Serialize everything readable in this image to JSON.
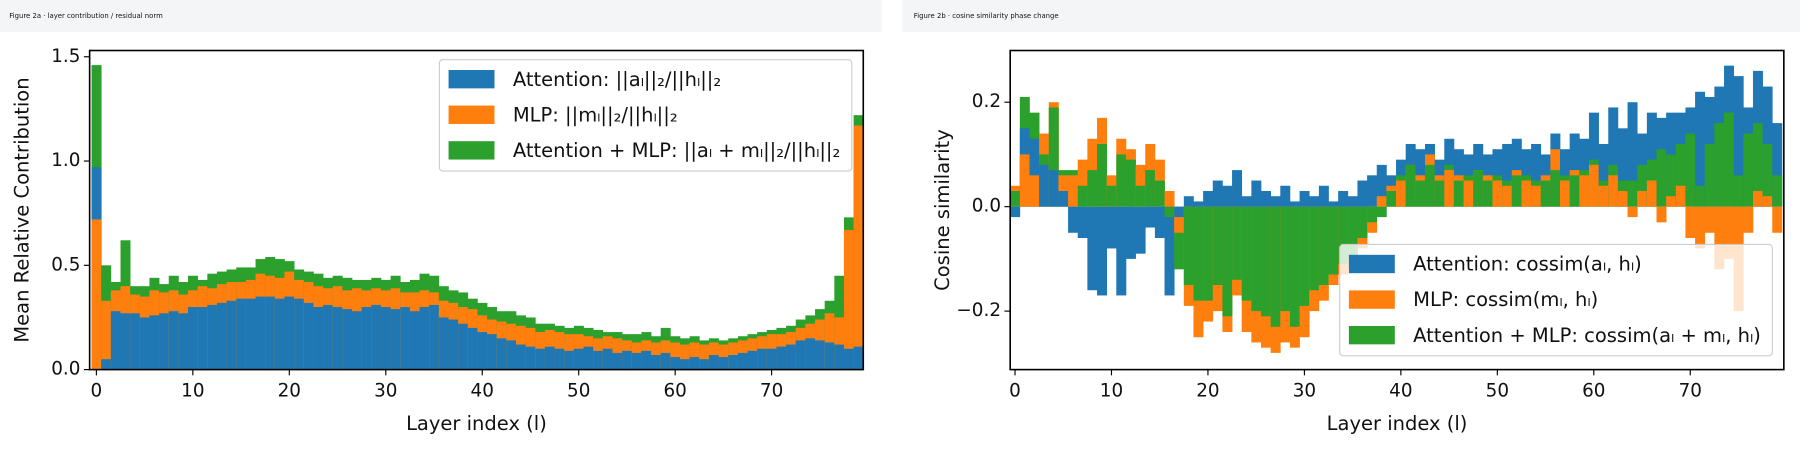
{
  "chart_data": [
    {
      "type": "bar",
      "title": "Figure 2a · layer contribution / residual norm",
      "xlabel": "Layer index (l)",
      "ylabel": "Mean Relative Contribution",
      "x": [
        0,
        1,
        2,
        3,
        4,
        5,
        6,
        7,
        8,
        9,
        10,
        11,
        12,
        13,
        14,
        15,
        16,
        17,
        18,
        19,
        20,
        21,
        22,
        23,
        24,
        25,
        26,
        27,
        28,
        29,
        30,
        31,
        32,
        33,
        34,
        35,
        36,
        37,
        38,
        39,
        40,
        41,
        42,
        43,
        44,
        45,
        46,
        47,
        48,
        49,
        50,
        51,
        52,
        53,
        54,
        55,
        56,
        57,
        58,
        59,
        60,
        61,
        62,
        63,
        64,
        65,
        66,
        67,
        68,
        69,
        70,
        71,
        72,
        73,
        74,
        75,
        76,
        77,
        78,
        79
      ],
      "series": [
        {
          "name": "Attention: ||aₗ||₂/||hₗ||₂",
          "color": "#1f77b4",
          "values": [
            0.97,
            0.05,
            0.28,
            0.27,
            0.27,
            0.25,
            0.26,
            0.27,
            0.28,
            0.27,
            0.3,
            0.3,
            0.31,
            0.32,
            0.33,
            0.34,
            0.34,
            0.35,
            0.35,
            0.34,
            0.35,
            0.34,
            0.32,
            0.3,
            0.31,
            0.3,
            0.29,
            0.28,
            0.3,
            0.31,
            0.3,
            0.29,
            0.3,
            0.28,
            0.3,
            0.31,
            0.25,
            0.24,
            0.22,
            0.2,
            0.18,
            0.17,
            0.15,
            0.14,
            0.12,
            0.11,
            0.1,
            0.11,
            0.1,
            0.09,
            0.1,
            0.11,
            0.09,
            0.1,
            0.08,
            0.09,
            0.08,
            0.09,
            0.07,
            0.08,
            0.06,
            0.05,
            0.06,
            0.05,
            0.07,
            0.06,
            0.07,
            0.08,
            0.09,
            0.1,
            0.1,
            0.11,
            0.12,
            0.14,
            0.15,
            0.14,
            0.13,
            0.12,
            0.1,
            0.11
          ]
        },
        {
          "name": "MLP: ||mₗ||₂/||hₗ||₂",
          "color": "#ff7f0e",
          "values": [
            0.72,
            0.33,
            0.38,
            0.4,
            0.36,
            0.35,
            0.38,
            0.37,
            0.38,
            0.36,
            0.38,
            0.4,
            0.39,
            0.41,
            0.42,
            0.42,
            0.43,
            0.46,
            0.45,
            0.44,
            0.47,
            0.43,
            0.42,
            0.4,
            0.39,
            0.4,
            0.38,
            0.39,
            0.38,
            0.39,
            0.38,
            0.39,
            0.37,
            0.37,
            0.38,
            0.37,
            0.33,
            0.32,
            0.3,
            0.29,
            0.26,
            0.24,
            0.23,
            0.22,
            0.21,
            0.2,
            0.18,
            0.19,
            0.18,
            0.17,
            0.17,
            0.16,
            0.15,
            0.16,
            0.15,
            0.14,
            0.13,
            0.14,
            0.13,
            0.14,
            0.13,
            0.12,
            0.13,
            0.12,
            0.13,
            0.12,
            0.13,
            0.14,
            0.15,
            0.16,
            0.17,
            0.17,
            0.18,
            0.2,
            0.22,
            0.24,
            0.27,
            0.25,
            0.67,
            1.17
          ]
        },
        {
          "name": "Attention + MLP: ||aₗ + mₗ||₂/||hₗ||₂",
          "color": "#2ca02c",
          "values": [
            1.46,
            0.5,
            0.42,
            0.62,
            0.4,
            0.4,
            0.44,
            0.41,
            0.45,
            0.42,
            0.45,
            0.43,
            0.46,
            0.47,
            0.48,
            0.49,
            0.49,
            0.53,
            0.54,
            0.53,
            0.52,
            0.48,
            0.47,
            0.46,
            0.44,
            0.45,
            0.44,
            0.43,
            0.43,
            0.44,
            0.43,
            0.45,
            0.42,
            0.43,
            0.46,
            0.45,
            0.4,
            0.38,
            0.37,
            0.34,
            0.32,
            0.3,
            0.28,
            0.28,
            0.26,
            0.25,
            0.22,
            0.22,
            0.21,
            0.2,
            0.21,
            0.2,
            0.19,
            0.18,
            0.18,
            0.17,
            0.17,
            0.18,
            0.16,
            0.2,
            0.16,
            0.15,
            0.16,
            0.14,
            0.15,
            0.14,
            0.15,
            0.16,
            0.17,
            0.18,
            0.19,
            0.2,
            0.21,
            0.24,
            0.26,
            0.29,
            0.33,
            0.45,
            0.73,
            1.22
          ]
        }
      ],
      "xlim": [
        -0.7,
        79.5
      ],
      "ylim": [
        0,
        1.53
      ],
      "xticks": [
        0,
        10,
        20,
        30,
        40,
        50,
        60,
        70
      ],
      "yticks": [
        {
          "value": 0,
          "label": "0.0"
        },
        0.5,
        {
          "value": 1,
          "label": "1.0"
        },
        1.5
      ],
      "legend": "upper right"
    },
    {
      "type": "bar",
      "title": "Figure 2b · cosine similarity phase change",
      "xlabel": "Layer index (l)",
      "ylabel": "Cosine similarity",
      "x": [
        0,
        1,
        2,
        3,
        4,
        5,
        6,
        7,
        8,
        9,
        10,
        11,
        12,
        13,
        14,
        15,
        16,
        17,
        18,
        19,
        20,
        21,
        22,
        23,
        24,
        25,
        26,
        27,
        28,
        29,
        30,
        31,
        32,
        33,
        34,
        35,
        36,
        37,
        38,
        39,
        40,
        41,
        42,
        43,
        44,
        45,
        46,
        47,
        48,
        49,
        50,
        51,
        52,
        53,
        54,
        55,
        56,
        57,
        58,
        59,
        60,
        61,
        62,
        63,
        64,
        65,
        66,
        67,
        68,
        69,
        70,
        71,
        72,
        73,
        74,
        75,
        76,
        77,
        78,
        79
      ],
      "series": [
        {
          "name": "Attention: cossim(aₗ, hₗ)",
          "color": "#1f77b4",
          "values": [
            -0.02,
            0.15,
            0.13,
            0.08,
            0.07,
            0.03,
            -0.05,
            -0.06,
            -0.16,
            -0.17,
            -0.08,
            -0.17,
            -0.1,
            -0.09,
            -0.04,
            -0.06,
            -0.17,
            -0.02,
            0.02,
            0.01,
            0.03,
            0.05,
            0.04,
            0.07,
            0.02,
            0.05,
            0.03,
            0.02,
            0.04,
            0.01,
            0.03,
            0.02,
            0.04,
            0.01,
            0.03,
            0.02,
            0.05,
            0.06,
            0.08,
            0.06,
            0.09,
            0.12,
            0.11,
            0.12,
            0.09,
            0.13,
            0.11,
            0.1,
            0.12,
            0.1,
            0.11,
            0.12,
            0.13,
            0.11,
            0.12,
            0.1,
            0.14,
            0.11,
            0.14,
            0.13,
            0.18,
            0.12,
            0.19,
            0.15,
            0.2,
            0.14,
            0.18,
            0.17,
            0.18,
            0.18,
            0.19,
            0.22,
            0.21,
            0.23,
            0.27,
            0.25,
            0.19,
            0.26,
            0.23,
            0.16
          ]
        },
        {
          "name": "MLP: cossim(mₗ, hₗ)",
          "color": "#ff7f0e",
          "values": [
            0.04,
            0.1,
            0.06,
            0.14,
            0.2,
            0.06,
            0.06,
            0.09,
            0.13,
            0.17,
            0.06,
            0.13,
            0.11,
            0.08,
            0.12,
            0.09,
            0.03,
            -0.05,
            -0.19,
            -0.25,
            -0.22,
            -0.2,
            -0.24,
            -0.17,
            -0.24,
            -0.26,
            -0.27,
            -0.28,
            -0.26,
            -0.27,
            -0.25,
            -0.2,
            -0.18,
            -0.15,
            -0.13,
            -0.12,
            -0.08,
            -0.05,
            0.02,
            0.04,
            0.05,
            0.08,
            0.06,
            0.1,
            0.06,
            0.07,
            0.06,
            0.05,
            0.07,
            0.06,
            0.05,
            0.04,
            0.07,
            0.05,
            0.04,
            0.06,
            0.11,
            0.05,
            0.07,
            0.06,
            0.08,
            0.04,
            0.06,
            0.03,
            -0.02,
            0.03,
            0.05,
            -0.03,
            0.02,
            0.04,
            -0.06,
            -0.08,
            -0.05,
            -0.12,
            -0.1,
            -0.2,
            -0.05,
            0.03,
            0.02,
            -0.05
          ]
        },
        {
          "name": "Attention + MLP: cossim(aₗ + mₗ, hₗ)",
          "color": "#2ca02c",
          "values": [
            0.03,
            0.21,
            0.18,
            0.1,
            0.19,
            0.07,
            0.07,
            0.04,
            0.07,
            0.12,
            0.04,
            0.1,
            0.09,
            0.04,
            0.07,
            0.05,
            -0.02,
            -0.12,
            -0.15,
            -0.18,
            -0.18,
            -0.15,
            -0.21,
            -0.14,
            -0.18,
            -0.2,
            -0.21,
            -0.23,
            -0.2,
            -0.23,
            -0.19,
            -0.16,
            -0.15,
            -0.13,
            -0.11,
            -0.1,
            -0.06,
            -0.03,
            -0.02,
            0.03,
            0.06,
            0.08,
            0.05,
            0.08,
            0.05,
            0.08,
            0.05,
            0.06,
            0.07,
            0.05,
            0.06,
            0.05,
            0.06,
            0.06,
            0.05,
            0.05,
            0.07,
            0.06,
            0.06,
            0.07,
            0.09,
            0.05,
            0.08,
            0.05,
            0.05,
            0.08,
            0.09,
            0.11,
            0.1,
            0.12,
            0.14,
            0.04,
            0.12,
            0.16,
            0.18,
            0.06,
            0.14,
            0.16,
            0.12,
            0.06
          ]
        }
      ],
      "xlim": [
        -0.5,
        79.7
      ],
      "ylim": [
        -0.312,
        0.299
      ],
      "xticks": [
        0,
        10,
        20,
        30,
        40,
        50,
        60,
        70
      ],
      "yticks": [
        {
          "value": -0.2,
          "label": "−0.2"
        },
        {
          "value": 0,
          "label": "0.0"
        },
        0.2
      ],
      "legend": "lower right"
    }
  ]
}
